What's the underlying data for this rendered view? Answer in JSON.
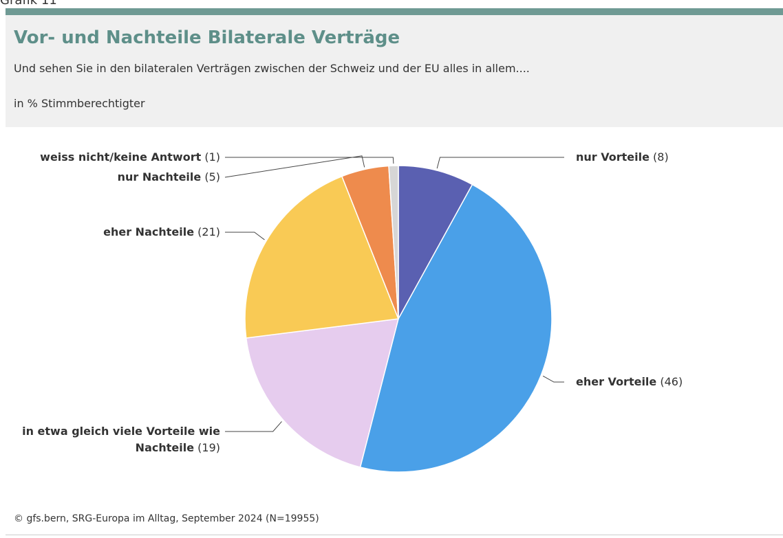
{
  "header": {
    "label": "Grafik 11"
  },
  "chart_data": {
    "type": "pie",
    "title": "Vor- und Nachteile Bilaterale Verträge",
    "subtitle": "Und sehen Sie in den bilateralen Verträgen zwischen der Schweiz und der EU alles in allem....",
    "unit_note": "in % Stimmberechtigter",
    "categories": [
      "nur Vorteile",
      "eher Vorteile",
      "in etwa gleich viele Vorteile wie Nachteile",
      "eher Nachteile",
      "nur Nachteile",
      "weiss nicht/keine Antwort"
    ],
    "values": [
      8,
      46,
      19,
      21,
      5,
      1
    ],
    "value_labels": [
      "(8)",
      "(46)",
      "(19)",
      "(21)",
      "(5)",
      "(1)"
    ],
    "colors": [
      "#5a60b1",
      "#4aa0e8",
      "#e6ccee",
      "#f9ca55",
      "#ee8b4d",
      "#d6d6d6"
    ],
    "source": "© gfs.bern, SRG-Europa im Alltag, September 2024 (N=19955)"
  }
}
